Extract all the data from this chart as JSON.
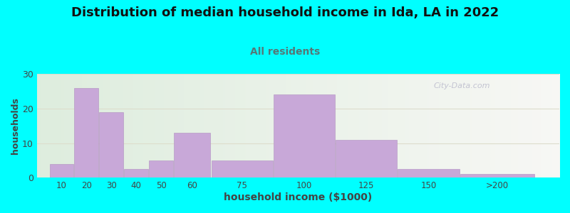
{
  "title": "Distribution of median household income in Ida, LA in 2022",
  "subtitle": "All residents",
  "xlabel": "household income ($1000)",
  "ylabel": "households",
  "background_color": "#00FFFF",
  "bar_color": "#c8a8d8",
  "bar_edge_color": "#b090c0",
  "values": [
    4,
    26,
    19,
    2.5,
    5,
    13,
    5,
    24,
    11,
    2.5,
    1
  ],
  "bar_widths": [
    10,
    10,
    10,
    10,
    10,
    15,
    25,
    25,
    25,
    25,
    30
  ],
  "bar_lefts": [
    10,
    20,
    30,
    40,
    50,
    60,
    75,
    100,
    125,
    150,
    175
  ],
  "xlim_left": 5,
  "xlim_right": 215,
  "ylim": [
    0,
    30
  ],
  "yticks": [
    0,
    10,
    20,
    30
  ],
  "title_fontsize": 13,
  "subtitle_fontsize": 10,
  "subtitle_color": "#557777",
  "ylabel_fontsize": 9,
  "xlabel_fontsize": 10,
  "watermark_text": "City-Data.com",
  "xtick_labels": [
    "10",
    "20",
    "30",
    "40",
    "50",
    "60",
    "75",
    "100",
    "125",
    "150",
    ">200"
  ],
  "plot_left_color": "#ddeedd",
  "plot_right_color": "#f8f8f4",
  "grid_color": "#ddddcc",
  "tick_color": "#888888"
}
